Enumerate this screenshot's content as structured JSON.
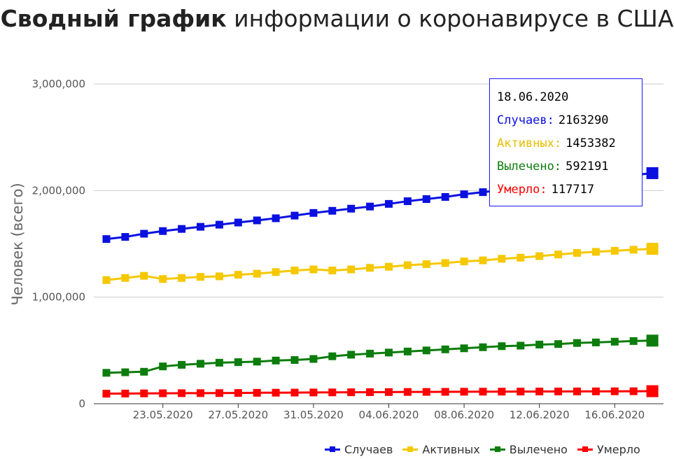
{
  "title": {
    "bold": "Сводный график",
    "rest": "информации о коронавирусе в США"
  },
  "tooltip": {
    "date": "18.06.2020",
    "rows": [
      {
        "label": "Случаев:",
        "value": "2163290"
      },
      {
        "label": "Активных:",
        "value": "1453382"
      },
      {
        "label": "Вылечено:",
        "value": "592191"
      },
      {
        "label": "Умерло:",
        "value": "117717"
      }
    ]
  },
  "chart_data": {
    "type": "line",
    "title": "Сводный график информации о коронавирусе в США",
    "xlabel": "",
    "ylabel": "Человек (всего)",
    "ylim": [
      0,
      3000000
    ],
    "yticks": [
      "0",
      "1,000,000",
      "2,000,000",
      "3,000,000"
    ],
    "x": [
      "20.05.2020",
      "21.05.2020",
      "22.05.2020",
      "23.05.2020",
      "24.05.2020",
      "25.05.2020",
      "26.05.2020",
      "27.05.2020",
      "28.05.2020",
      "29.05.2020",
      "30.05.2020",
      "31.05.2020",
      "01.06.2020",
      "02.06.2020",
      "03.06.2020",
      "04.06.2020",
      "05.06.2020",
      "06.06.2020",
      "07.06.2020",
      "08.06.2020",
      "09.06.2020",
      "10.06.2020",
      "11.06.2020",
      "12.06.2020",
      "13.06.2020",
      "14.06.2020",
      "15.06.2020",
      "16.06.2020",
      "17.06.2020",
      "18.06.2020"
    ],
    "xtick_labels": [
      "23.05.2020",
      "27.05.2020",
      "31.05.2020",
      "04.06.2020",
      "08.06.2020",
      "12.06.2020",
      "16.06.2020"
    ],
    "series": [
      {
        "name": "Случаев",
        "color": "#0a10e0",
        "values": [
          1545000,
          1565000,
          1595000,
          1620000,
          1640000,
          1660000,
          1680000,
          1700000,
          1720000,
          1740000,
          1765000,
          1790000,
          1810000,
          1830000,
          1850000,
          1875000,
          1900000,
          1920000,
          1940000,
          1965000,
          1985000,
          2005000,
          2025000,
          2045000,
          2065000,
          2085000,
          2110000,
          2130000,
          2145000,
          2163290
        ]
      },
      {
        "name": "Активных",
        "color": "#f5c800",
        "values": [
          1160000,
          1180000,
          1200000,
          1170000,
          1180000,
          1190000,
          1195000,
          1210000,
          1220000,
          1235000,
          1250000,
          1260000,
          1250000,
          1260000,
          1275000,
          1285000,
          1300000,
          1310000,
          1320000,
          1335000,
          1345000,
          1360000,
          1370000,
          1385000,
          1400000,
          1415000,
          1425000,
          1435000,
          1445000,
          1453382
        ]
      },
      {
        "name": "Вылечено",
        "color": "#0c7d0c",
        "values": [
          290000,
          295000,
          300000,
          350000,
          365000,
          375000,
          385000,
          390000,
          395000,
          405000,
          410000,
          420000,
          445000,
          460000,
          470000,
          480000,
          490000,
          500000,
          510000,
          520000,
          530000,
          540000,
          545000,
          555000,
          560000,
          570000,
          575000,
          582000,
          588000,
          592191
        ]
      },
      {
        "name": "Умерло",
        "color": "#ff0000",
        "values": [
          94000,
          95500,
          97000,
          98000,
          99000,
          99500,
          100000,
          101000,
          102500,
          103500,
          104500,
          105500,
          106500,
          107500,
          108500,
          109500,
          110500,
          111000,
          111500,
          112500,
          113000,
          113500,
          114000,
          114500,
          115000,
          115500,
          116000,
          116500,
          117000,
          117717
        ]
      }
    ],
    "legend_position": "bottom-right",
    "grid": true
  }
}
